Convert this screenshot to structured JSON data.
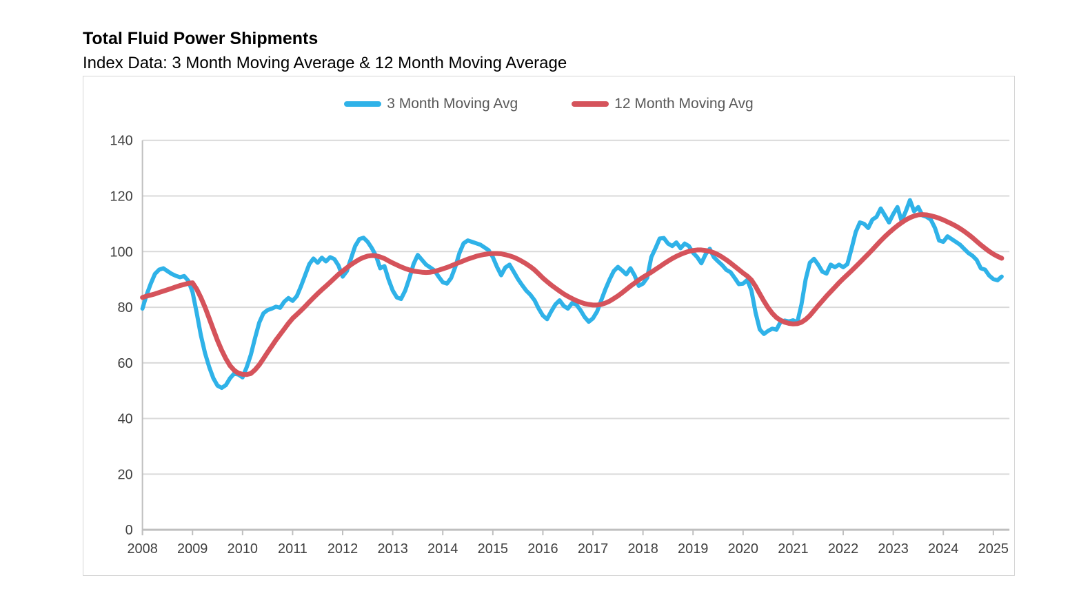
{
  "page": {
    "title": "Total Fluid Power Shipments",
    "subtitle": "Index Data: 3 Month Moving Average & 12 Month Moving Average"
  },
  "colors": {
    "series_3mo": "#2FB2E8",
    "series_12mo": "#D5535B",
    "gridline": "#D9D9D9",
    "axis": "#BFBFBF",
    "tick_text": "#404040",
    "legend_text": "#595959"
  },
  "legend": {
    "items": [
      {
        "label": "3 Month Moving Avg",
        "color": "#2FB2E8"
      },
      {
        "label": "12 Month Moving Avg",
        "color": "#D5535B"
      }
    ]
  },
  "chart_data": {
    "type": "line",
    "title": "Total Fluid Power Shipments",
    "subtitle": "Index Data: 3 Month Moving Average & 12 Month Moving Average",
    "xlabel": "",
    "ylabel": "",
    "frequency": "monthly",
    "x_start": "2008-01",
    "x_end": "2025-03",
    "x_tick_labels": [
      "2008",
      "2009",
      "2010",
      "2011",
      "2012",
      "2013",
      "2014",
      "2015",
      "2016",
      "2017",
      "2018",
      "2019",
      "2020",
      "2021",
      "2022",
      "2023",
      "2024",
      "2025"
    ],
    "y_ticks": [
      0,
      20,
      40,
      60,
      80,
      100,
      120,
      140
    ],
    "ylim": [
      0,
      140
    ],
    "grid": "horizontal",
    "legend_position": "top-center",
    "series": [
      {
        "name": "3 Month Moving Avg",
        "color": "#2FB2E8",
        "values": [
          79.5,
          84.5,
          88.5,
          92.0,
          93.5,
          94.0,
          93.0,
          92.0,
          91.3,
          90.8,
          91.2,
          89.5,
          85.5,
          78.0,
          70.0,
          63.5,
          58.5,
          54.5,
          51.8,
          51.0,
          52.0,
          54.5,
          56.2,
          55.8,
          54.8,
          58.5,
          63.0,
          69.0,
          74.5,
          77.8,
          79.0,
          79.5,
          80.2,
          79.8,
          82.0,
          83.3,
          82.3,
          84.0,
          87.5,
          91.5,
          95.5,
          97.5,
          96.0,
          97.8,
          96.5,
          98.0,
          97.3,
          95.0,
          91.0,
          93.0,
          97.5,
          102.0,
          104.5,
          105.0,
          103.5,
          101.2,
          98.5,
          94.0,
          94.8,
          90.0,
          86.0,
          83.5,
          83.0,
          86.0,
          90.5,
          95.5,
          98.8,
          97.0,
          95.3,
          94.3,
          93.2,
          91.0,
          89.0,
          88.5,
          90.5,
          94.5,
          99.5,
          103.0,
          104.0,
          103.5,
          103.0,
          102.5,
          101.5,
          100.5,
          98.0,
          94.5,
          91.5,
          94.3,
          95.3,
          92.8,
          90.2,
          88.0,
          86.0,
          84.5,
          82.5,
          79.5,
          77.0,
          75.7,
          78.5,
          81.0,
          82.5,
          80.5,
          79.5,
          81.5,
          81.0,
          79.0,
          76.5,
          74.8,
          76.0,
          78.5,
          82.5,
          86.5,
          90.0,
          93.0,
          94.5,
          93.2,
          91.8,
          94.0,
          91.4,
          87.7,
          88.5,
          90.6,
          98.0,
          101.2,
          104.7,
          104.9,
          102.9,
          102.0,
          103.3,
          101.2,
          102.9,
          102.0,
          99.6,
          98.0,
          95.8,
          99.0,
          101.0,
          98.0,
          96.5,
          95.1,
          93.4,
          92.6,
          90.5,
          88.3,
          88.5,
          89.8,
          86.0,
          78.0,
          72.0,
          70.4,
          71.5,
          72.3,
          71.9,
          74.8,
          75.2,
          74.9,
          75.3,
          74.6,
          81.0,
          90.0,
          96.0,
          97.4,
          95.3,
          92.8,
          92.1,
          95.3,
          94.4,
          95.3,
          94.4,
          95.5,
          101.0,
          107.0,
          110.5,
          110.0,
          108.5,
          111.5,
          112.5,
          115.5,
          113.0,
          110.5,
          113.5,
          116.0,
          111.0,
          114.5,
          118.5,
          114.5,
          116.0,
          113.0,
          112.5,
          111.5,
          108.5,
          104.0,
          103.5,
          105.5,
          104.5,
          103.5,
          102.5,
          101.0,
          99.5,
          98.5,
          97.0,
          94.0,
          93.5,
          91.4,
          90.1,
          89.7,
          91.0
        ]
      },
      {
        "name": "12 Month Moving Avg",
        "color": "#D5535B",
        "values": [
          83.5,
          84.0,
          84.4,
          84.8,
          85.3,
          85.8,
          86.3,
          86.8,
          87.3,
          87.8,
          88.2,
          88.6,
          88.8,
          86.5,
          83.5,
          80.0,
          76.0,
          72.0,
          68.0,
          64.5,
          61.5,
          59.0,
          57.3,
          56.3,
          55.9,
          55.8,
          56.2,
          57.5,
          59.3,
          61.5,
          63.8,
          66.0,
          68.2,
          70.2,
          72.2,
          74.2,
          76.0,
          77.4,
          78.8,
          80.3,
          81.9,
          83.4,
          84.9,
          86.3,
          87.6,
          89.0,
          90.4,
          91.8,
          93.0,
          94.2,
          95.3,
          96.3,
          97.2,
          97.9,
          98.4,
          98.6,
          98.5,
          98.1,
          97.5,
          96.7,
          95.9,
          95.2,
          94.5,
          93.9,
          93.4,
          93.0,
          92.8,
          92.6,
          92.5,
          92.6,
          92.9,
          93.3,
          93.8,
          94.3,
          94.9,
          95.5,
          96.1,
          96.7,
          97.3,
          97.8,
          98.3,
          98.7,
          99.0,
          99.2,
          99.3,
          99.3,
          99.2,
          98.9,
          98.5,
          98.0,
          97.3,
          96.5,
          95.6,
          94.6,
          93.4,
          92.0,
          90.5,
          89.2,
          88.0,
          86.9,
          85.8,
          84.8,
          83.9,
          83.1,
          82.4,
          81.8,
          81.3,
          81.0,
          80.8,
          80.8,
          81.0,
          81.5,
          82.2,
          83.1,
          84.1,
          85.2,
          86.4,
          87.6,
          88.7,
          89.8,
          90.8,
          91.7,
          92.6,
          93.6,
          94.6,
          95.6,
          96.6,
          97.5,
          98.3,
          99.0,
          99.6,
          100.1,
          100.4,
          100.6,
          100.6,
          100.4,
          100.1,
          99.6,
          98.9,
          98.0,
          97.0,
          95.9,
          94.7,
          93.5,
          92.3,
          91.2,
          89.8,
          87.5,
          84.8,
          82.2,
          79.8,
          77.8,
          76.3,
          75.3,
          74.6,
          74.2,
          74.0,
          74.1,
          74.6,
          75.6,
          77.0,
          78.8,
          80.6,
          82.3,
          84.0,
          85.6,
          87.2,
          88.8,
          90.3,
          91.7,
          93.1,
          94.6,
          96.1,
          97.6,
          99.1,
          100.7,
          102.3,
          103.9,
          105.4,
          106.8,
          108.1,
          109.3,
          110.4,
          111.4,
          112.2,
          112.8,
          113.2,
          113.3,
          113.2,
          112.9,
          112.5,
          112.0,
          111.4,
          110.7,
          110.0,
          109.2,
          108.3,
          107.3,
          106.2,
          105.0,
          103.7,
          102.4,
          101.2,
          100.1,
          99.1,
          98.3,
          97.6
        ]
      }
    ]
  }
}
